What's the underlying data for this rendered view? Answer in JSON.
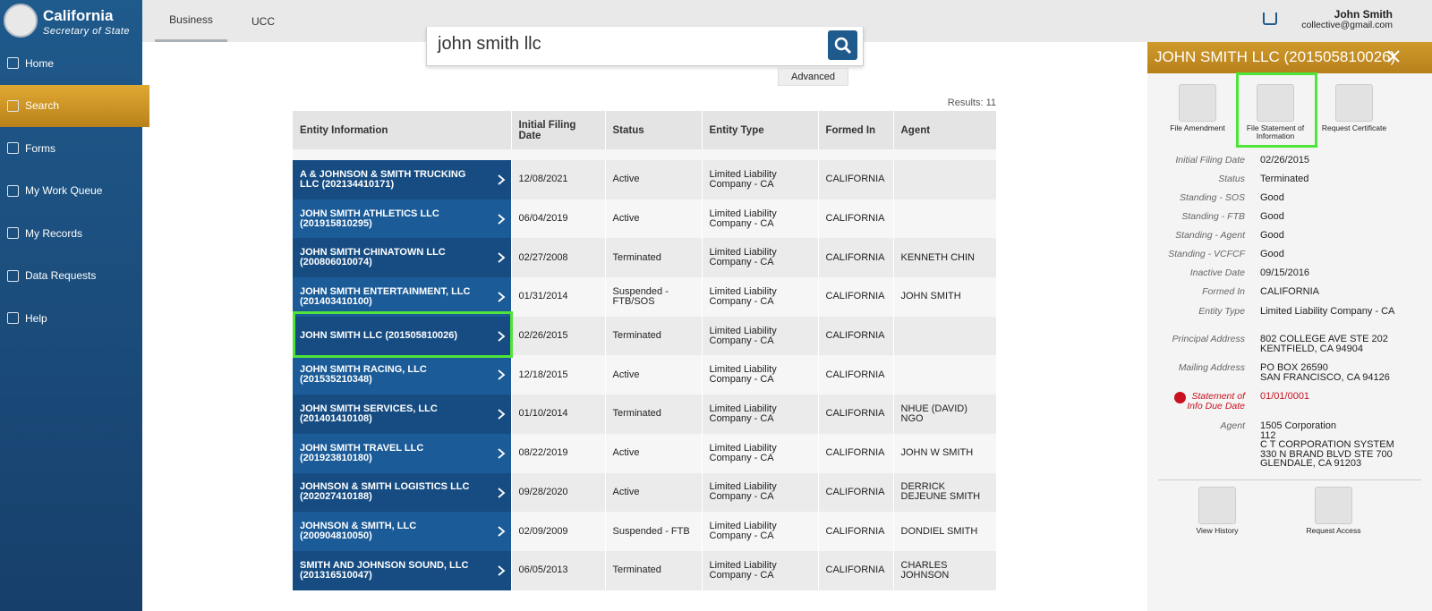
{
  "sidebar": {
    "brand_title": "California",
    "brand_subtitle": "Secretary of State",
    "nav": [
      "Home",
      "Search",
      "Forms",
      "My Work Queue",
      "My Records",
      "Data Requests",
      "Help"
    ]
  },
  "topbar": {
    "tabs": [
      "Business",
      "UCC"
    ],
    "user_name": "John Smith",
    "user_email": "collective@gmail.com"
  },
  "search": {
    "query": "john smith llc",
    "advanced": "Advanced",
    "results": "Results: 11"
  },
  "table": {
    "headers": [
      "Entity Information",
      "Initial Filing Date",
      "Status",
      "Entity Type",
      "Formed In",
      "Agent"
    ],
    "rows": [
      [
        "A & JOHNSON & SMITH TRUCKING LLC (202134410171)",
        "12/08/2021",
        "Active",
        "Limited Liability Company - CA",
        "CALIFORNIA",
        ""
      ],
      [
        "JOHN SMITH ATHLETICS LLC (201915810295)",
        "06/04/2019",
        "Active",
        "Limited Liability Company - CA",
        "CALIFORNIA",
        ""
      ],
      [
        "JOHN SMITH CHINATOWN LLC (200806010074)",
        "02/27/2008",
        "Terminated",
        "Limited Liability Company - CA",
        "CALIFORNIA",
        "KENNETH CHIN"
      ],
      [
        "JOHN SMITH ENTERTAINMENT, LLC (201403410100)",
        "01/31/2014",
        "Suspended - FTB/SOS",
        "Limited Liability Company - CA",
        "CALIFORNIA",
        "JOHN SMITH"
      ],
      [
        "JOHN SMITH LLC (201505810026)",
        "02/26/2015",
        "Terminated",
        "Limited Liability Company - CA",
        "CALIFORNIA",
        ""
      ],
      [
        "JOHN SMITH RACING, LLC (201535210348)",
        "12/18/2015",
        "Active",
        "Limited Liability Company - CA",
        "CALIFORNIA",
        ""
      ],
      [
        "JOHN SMITH SERVICES, LLC (201401410108)",
        "01/10/2014",
        "Terminated",
        "Limited Liability Company - CA",
        "CALIFORNIA",
        "NHUE (DAVID) NGO"
      ],
      [
        "JOHN SMITH TRAVEL LLC (201923810180)",
        "08/22/2019",
        "Active",
        "Limited Liability Company - CA",
        "CALIFORNIA",
        "JOHN W SMITH"
      ],
      [
        "JOHNSON & SMITH LOGISTICS LLC (202027410188)",
        "09/28/2020",
        "Active",
        "Limited Liability Company - CA",
        "CALIFORNIA",
        "DERRICK DEJEUNE SMITH"
      ],
      [
        "JOHNSON & SMITH, LLC (200904810050)",
        "02/09/2009",
        "Suspended - FTB",
        "Limited Liability Company - CA",
        "CALIFORNIA",
        "DONDIEL SMITH"
      ],
      [
        "SMITH AND JOHNSON SOUND, LLC (201316510047)",
        "06/05/2013",
        "Terminated",
        "Limited Liability Company - CA",
        "CALIFORNIA",
        "CHARLES JOHNSON"
      ]
    ]
  },
  "panel": {
    "title": "JOHN SMITH LLC (201505810026)",
    "actions": [
      "File Amendment",
      "File Statement of Information",
      "Request Certificate"
    ],
    "details": [
      {
        "label": "Initial Filing Date",
        "lines": [
          "02/26/2015"
        ]
      },
      {
        "label": "Status",
        "lines": [
          "Terminated"
        ]
      },
      {
        "label": "Standing - SOS",
        "lines": [
          "Good"
        ]
      },
      {
        "label": "Standing - FTB",
        "lines": [
          "Good"
        ]
      },
      {
        "label": "Standing - Agent",
        "lines": [
          "Good"
        ]
      },
      {
        "label": "Standing - VCFCF",
        "lines": [
          "Good"
        ]
      },
      {
        "label": "Inactive Date",
        "lines": [
          "09/15/2016"
        ]
      },
      {
        "label": "Formed In",
        "lines": [
          "CALIFORNIA"
        ]
      },
      {
        "label": "Entity Type",
        "lines": [
          "Limited Liability Company - CA"
        ]
      },
      {
        "label": "Principal Address",
        "lines": [
          "802 COLLEGE AVE STE 202",
          "KENTFIELD, CA 94904"
        ]
      },
      {
        "label": "Mailing Address",
        "lines": [
          "PO BOX 26590",
          "SAN FRANCISCO, CA 94126"
        ]
      },
      {
        "label": "Statement of Info Due Date",
        "lines": [
          "01/01/0001"
        ]
      },
      {
        "label": "Agent",
        "lines": [
          "1505 Corporation",
          "112",
          "C T CORPORATION SYSTEM",
          "330 N BRAND BLVD STE 700",
          "GLENDALE, CA  91203"
        ]
      }
    ],
    "bottom_actions": [
      "View History",
      "Request Access"
    ]
  }
}
